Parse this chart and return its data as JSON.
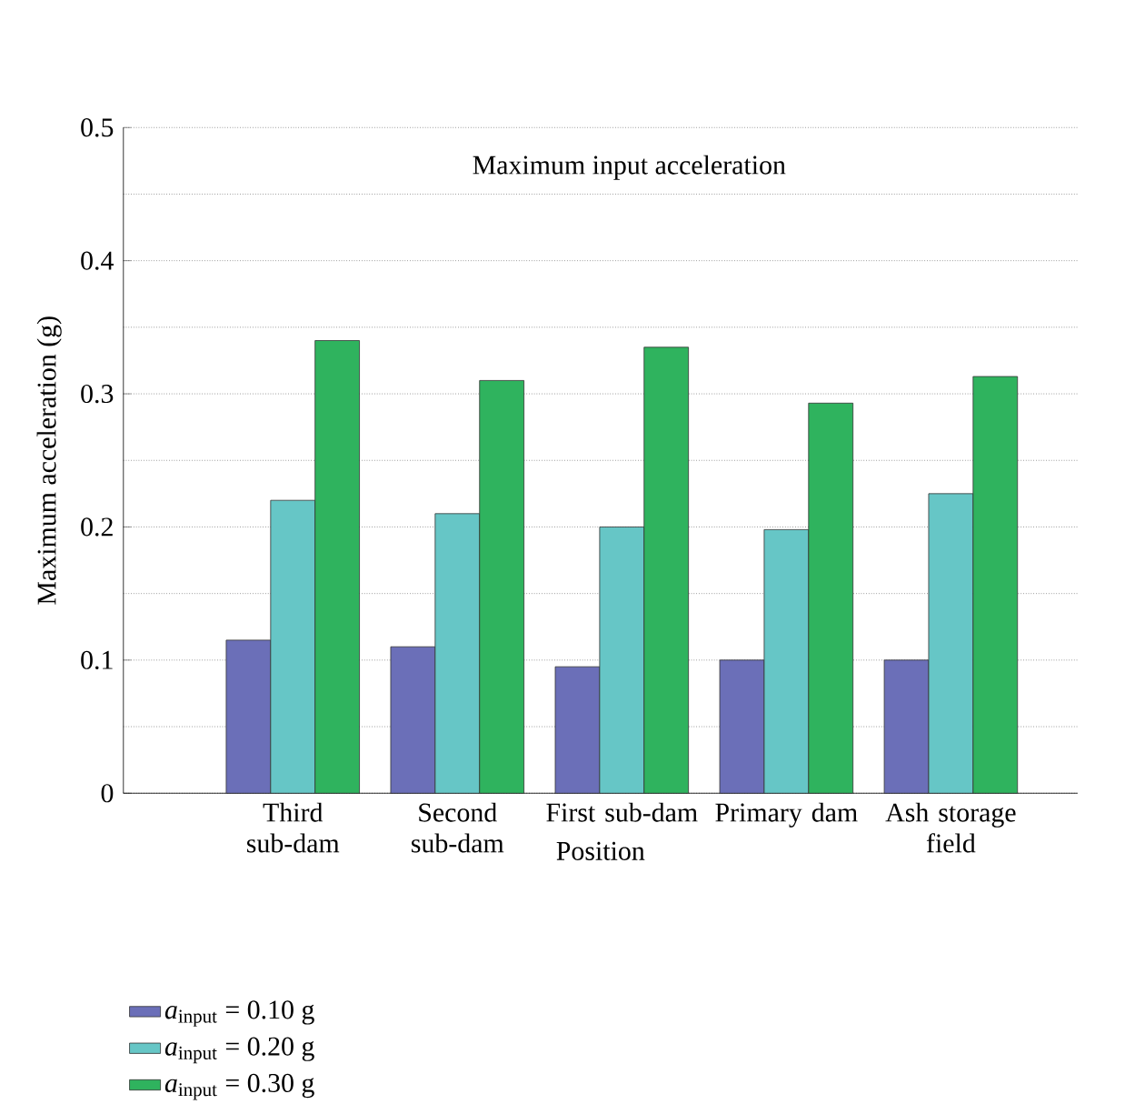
{
  "chart_data": {
    "type": "bar",
    "xlabel": "Position",
    "ylabel": "Maximum acceleration (g)",
    "categories": [
      "Third sub-dam",
      "Second sub-dam",
      "First sub-dam",
      "Primary dam",
      "Ash storage field"
    ],
    "series": [
      {
        "name": "*a*$_{input}$ = 0.10 g",
        "color": "#6b6fb8",
        "values": [
          0.115,
          0.11,
          0.095,
          0.1,
          0.1
        ]
      },
      {
        "name": "*a*$_{input}$ = 0.20 g",
        "color": "#66c6c6",
        "values": [
          0.22,
          0.21,
          0.2,
          0.198,
          0.225
        ]
      },
      {
        "name": "*a*$_{input}$ = 0.30 g",
        "color": "#2fb35e",
        "values": [
          0.34,
          0.31,
          0.335,
          0.293,
          0.313
        ]
      }
    ],
    "ylim": [
      0,
      0.5
    ],
    "yticks": [
      0,
      0.1,
      0.2,
      0.3,
      0.4,
      0.5
    ],
    "grid": "y",
    "legend": "bottom",
    "annotations": [
      "Maximum input acceleration"
    ]
  }
}
